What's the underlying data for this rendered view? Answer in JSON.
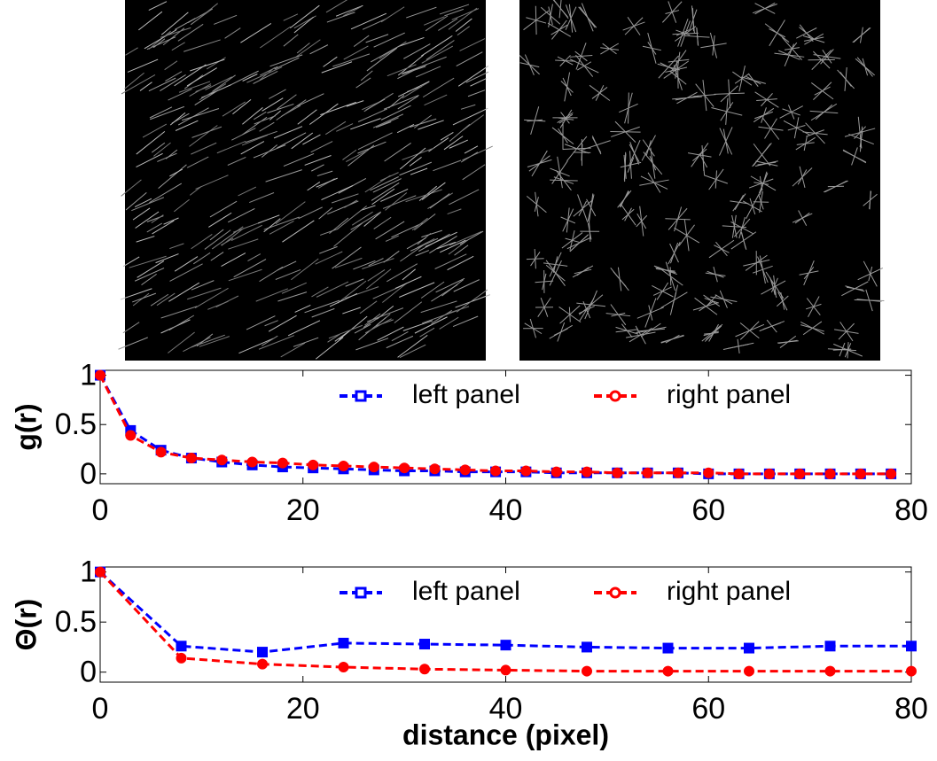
{
  "chart_data": [
    {
      "type": "line",
      "ylabel": "g(r)",
      "x": [
        0,
        3,
        6,
        9,
        12,
        15,
        18,
        21,
        24,
        27,
        30,
        33,
        36,
        39,
        42,
        45,
        48,
        51,
        54,
        57,
        60,
        63,
        66,
        69,
        72,
        75,
        78
      ],
      "series": [
        {
          "name": "left panel",
          "color": "#0000ff",
          "marker": "square",
          "values": [
            1,
            0.44,
            0.24,
            0.16,
            0.12,
            0.09,
            0.07,
            0.06,
            0.05,
            0.04,
            0.03,
            0.03,
            0.02,
            0.02,
            0.02,
            0.01,
            0.01,
            0.01,
            0.01,
            0.01,
            0,
            0,
            0,
            0,
            0,
            0,
            0
          ]
        },
        {
          "name": "right panel",
          "color": "#ff0000",
          "marker": "circle",
          "values": [
            1,
            0.39,
            0.22,
            0.16,
            0.14,
            0.12,
            0.11,
            0.09,
            0.08,
            0.07,
            0.06,
            0.05,
            0.04,
            0.03,
            0.03,
            0.02,
            0.02,
            0.01,
            0.01,
            0.01,
            0.01,
            0,
            0,
            0,
            0,
            0,
            0
          ]
        }
      ],
      "xlim": [
        0,
        80
      ],
      "ylim": [
        -0.1,
        1.05
      ],
      "xticks": [
        0,
        20,
        40,
        60,
        80
      ],
      "yticks": [
        0,
        0.5,
        1
      ],
      "legend": "top-right"
    },
    {
      "type": "line",
      "ylabel": "Θ(r)",
      "xlabel": "distance (pixel)",
      "x": [
        0,
        8,
        16,
        24,
        32,
        40,
        48,
        56,
        64,
        72,
        80
      ],
      "series": [
        {
          "name": "left panel",
          "color": "#0000ff",
          "marker": "square",
          "values": [
            1,
            0.26,
            0.2,
            0.29,
            0.28,
            0.27,
            0.25,
            0.24,
            0.24,
            0.26,
            0.26
          ]
        },
        {
          "name": "right panel",
          "color": "#ff0000",
          "marker": "circle",
          "values": [
            1,
            0.14,
            0.08,
            0.05,
            0.03,
            0.02,
            0.01,
            0.01,
            0.01,
            0.01,
            0.01
          ]
        }
      ],
      "xlim": [
        0,
        80
      ],
      "ylim": [
        -0.1,
        1.05
      ],
      "xticks": [
        0,
        20,
        40,
        60,
        80
      ],
      "yticks": [
        0,
        0.5,
        1
      ],
      "legend": "top-right"
    }
  ]
}
